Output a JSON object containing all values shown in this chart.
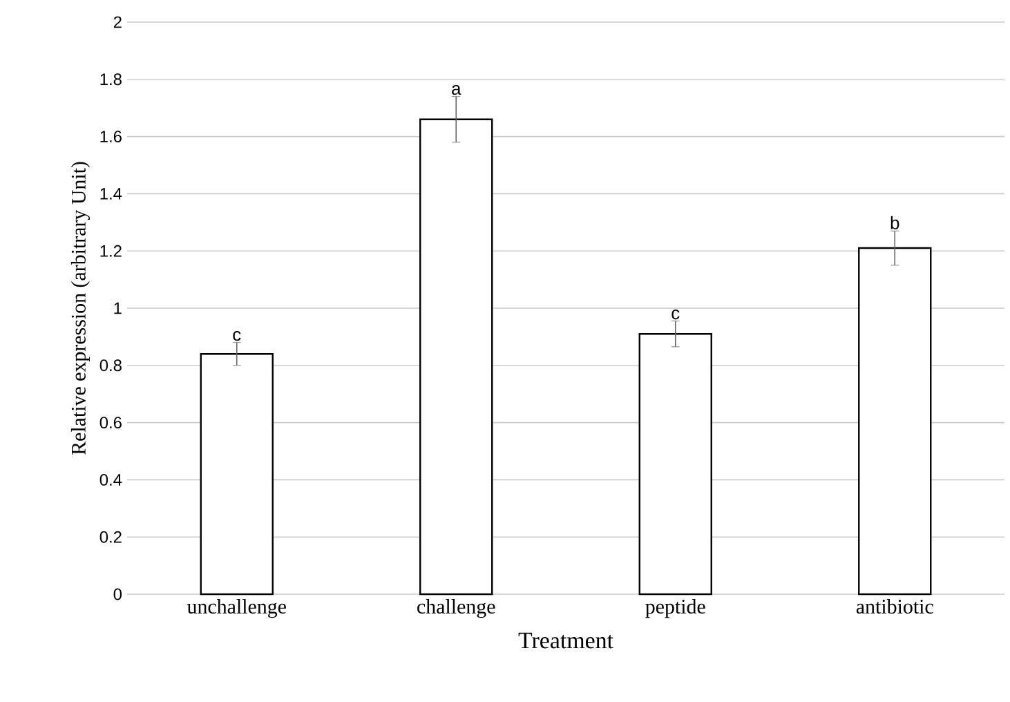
{
  "chart_data": {
    "type": "bar",
    "xlabel": "Treatment",
    "ylabel": "Relative expression (arbitrary Unit)",
    "categories": [
      "unchallenge",
      "challenge",
      "peptide",
      "antibiotic"
    ],
    "values": [
      0.84,
      1.66,
      0.91,
      1.21
    ],
    "errors": [
      0.04,
      0.08,
      0.045,
      0.06
    ],
    "color": "#000000",
    "ylim": [
      0,
      2
    ],
    "yticks": [
      0,
      0.2,
      0.4,
      0.6,
      0.8,
      1,
      1.2,
      1.4,
      1.6,
      1.8,
      2
    ],
    "grid": "y",
    "annotations": [
      {
        "text": "c",
        "x": "unchallenge",
        "y": 0.88
      },
      {
        "text": "a",
        "x": "challenge",
        "y": 1.74
      },
      {
        "text": "c",
        "x": "peptide",
        "y": 0.955
      },
      {
        "text": "b",
        "x": "antibiotic",
        "y": 1.27
      }
    ]
  }
}
